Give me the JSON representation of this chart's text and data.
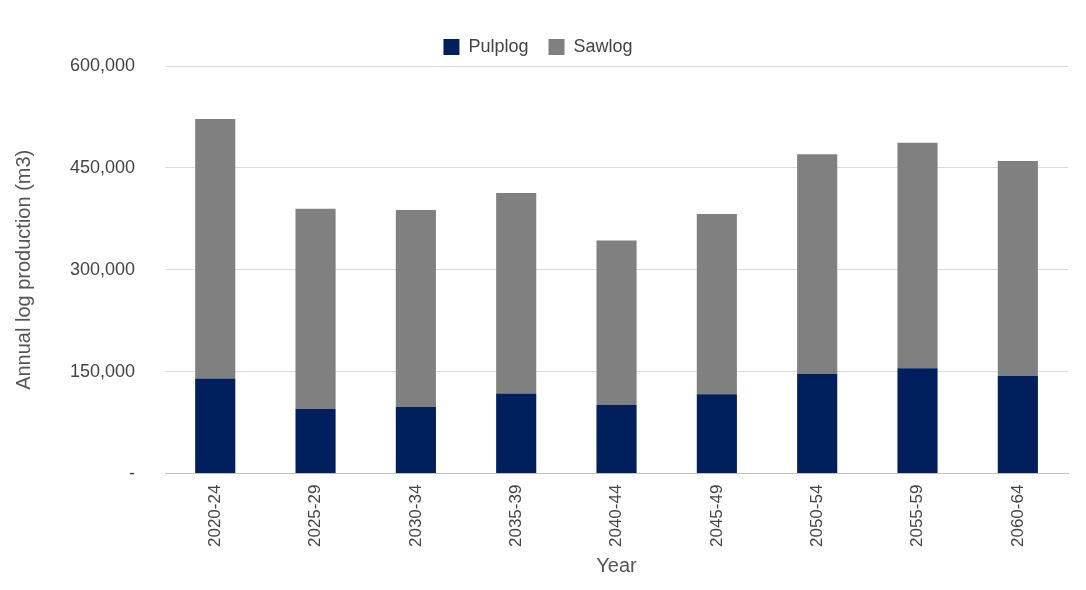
{
  "chart_data": {
    "type": "bar",
    "stacked": true,
    "xlabel": "Year",
    "ylabel": "Annual log production (m3)",
    "categories": [
      "2020-24",
      "2025-29",
      "2030-34",
      "2035-39",
      "2040-44",
      "2045-49",
      "2050-54",
      "2055-59",
      "2060-64"
    ],
    "series": [
      {
        "name": "Pulplog",
        "color": "#001f5c",
        "values": [
          140000,
          95000,
          98000,
          118000,
          101000,
          117000,
          147000,
          155000,
          144000
        ]
      },
      {
        "name": "Sawlog",
        "color": "#808080",
        "values": [
          382000,
          295000,
          290000,
          295000,
          242000,
          265000,
          323000,
          332000,
          316000
        ]
      }
    ],
    "ylim": [
      0,
      600000
    ],
    "yticks": [
      {
        "value": 0,
        "label": "-"
      },
      {
        "value": 150000,
        "label": "150,000"
      },
      {
        "value": 300000,
        "label": "300,000"
      },
      {
        "value": 450000,
        "label": "450,000"
      },
      {
        "value": 600000,
        "label": "600,000"
      }
    ],
    "grid": "y",
    "legend": "top"
  }
}
